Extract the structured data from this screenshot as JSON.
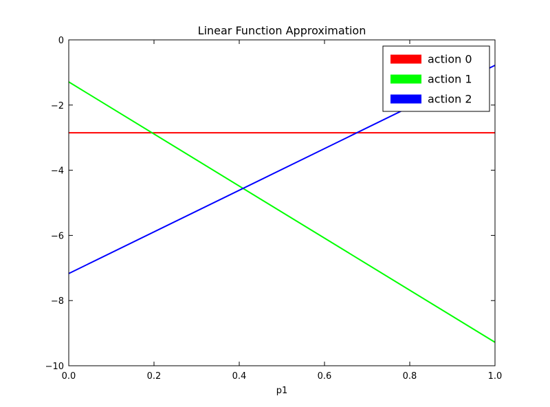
{
  "chart_data": {
    "type": "line",
    "title": "Linear Function Approximation",
    "xlabel": "p1",
    "ylabel": "",
    "xlim": [
      0,
      1
    ],
    "ylim": [
      -10,
      0
    ],
    "xticks": [
      0,
      0.2,
      0.4,
      0.6,
      0.8,
      1.0
    ],
    "xtick_labels": [
      "0.0",
      "0.2",
      "0.4",
      "0.6",
      "0.8",
      "1.0"
    ],
    "yticks": [
      0,
      -2,
      -4,
      -6,
      -8,
      -10
    ],
    "ytick_labels": [
      "0",
      "−2",
      "−4",
      "−6",
      "−8",
      "−10"
    ],
    "grid": false,
    "legend": {
      "position": "upper right",
      "border": true,
      "background": "#ffffff"
    },
    "series": [
      {
        "name": "action 0",
        "color": "#ff0000",
        "points": [
          [
            0,
            -2.85
          ],
          [
            1,
            -2.85
          ]
        ]
      },
      {
        "name": "action 1",
        "color": "#00ff00",
        "points": [
          [
            0,
            -1.29
          ],
          [
            1,
            -9.28
          ]
        ]
      },
      {
        "name": "action 2",
        "color": "#0000ff",
        "points": [
          [
            0,
            -7.17
          ],
          [
            1,
            -0.78
          ]
        ]
      }
    ],
    "line_width": 2,
    "axis_color": "#000000",
    "background": "#ffffff"
  }
}
